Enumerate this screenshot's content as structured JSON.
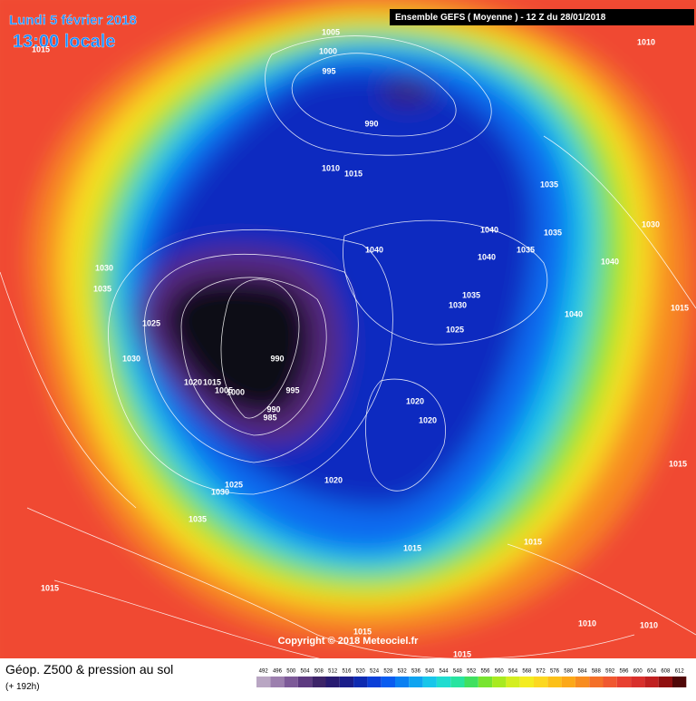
{
  "header": {
    "date": "Lundi 5 février 2018",
    "time": "13:00 locale",
    "run": "Ensemble GEFS  ( Moyenne )  -  12 Z du 28/01/2018"
  },
  "isobars": [
    "1005",
    "1000",
    "995",
    "990",
    "1010",
    "1015",
    "1010",
    "1015",
    "1035",
    "1030",
    "1040",
    "1035",
    "1040",
    "1040",
    "1035",
    "1040",
    "1030",
    "1035",
    "1035",
    "1030",
    "1015",
    "1040",
    "1025",
    "1025",
    "1030",
    "990",
    "1020",
    "1015",
    "1005",
    "1000",
    "995",
    "990",
    "985",
    "1020",
    "1020",
    "1015",
    "1020",
    "1025",
    "1030",
    "1035",
    "1015",
    "1015",
    "1015",
    "1010",
    "1010",
    "1015",
    "1015"
  ],
  "copyright": "Copyright © 2018 Meteociel.fr",
  "footer": {
    "title": "Géop. Z500 & pression au sol",
    "lead": "(+ 192h)"
  },
  "scale": {
    "labels": [
      "492",
      "496",
      "500",
      "504",
      "508",
      "512",
      "516",
      "520",
      "524",
      "528",
      "532",
      "536",
      "540",
      "544",
      "548",
      "552",
      "556",
      "560",
      "564",
      "568",
      "572",
      "576",
      "580",
      "584",
      "588",
      "592",
      "596",
      "600",
      "604",
      "608",
      "612"
    ],
    "colors": [
      "#b9a6c3",
      "#9c7fae",
      "#7d5a98",
      "#5d3a80",
      "#3d2468",
      "#281a70",
      "#1a1d8a",
      "#0e2ab0",
      "#0b3fd8",
      "#0a5cf0",
      "#0a80f2",
      "#10a4f0",
      "#18c6ea",
      "#20dcd0",
      "#28e4a0",
      "#40e060",
      "#78e430",
      "#a8ea20",
      "#d4ee20",
      "#f4ec20",
      "#fcd820",
      "#fcc018",
      "#fca818",
      "#f88c20",
      "#f47028",
      "#f05830",
      "#e84030",
      "#d8302c",
      "#c02020",
      "#901010",
      "#500808"
    ]
  }
}
